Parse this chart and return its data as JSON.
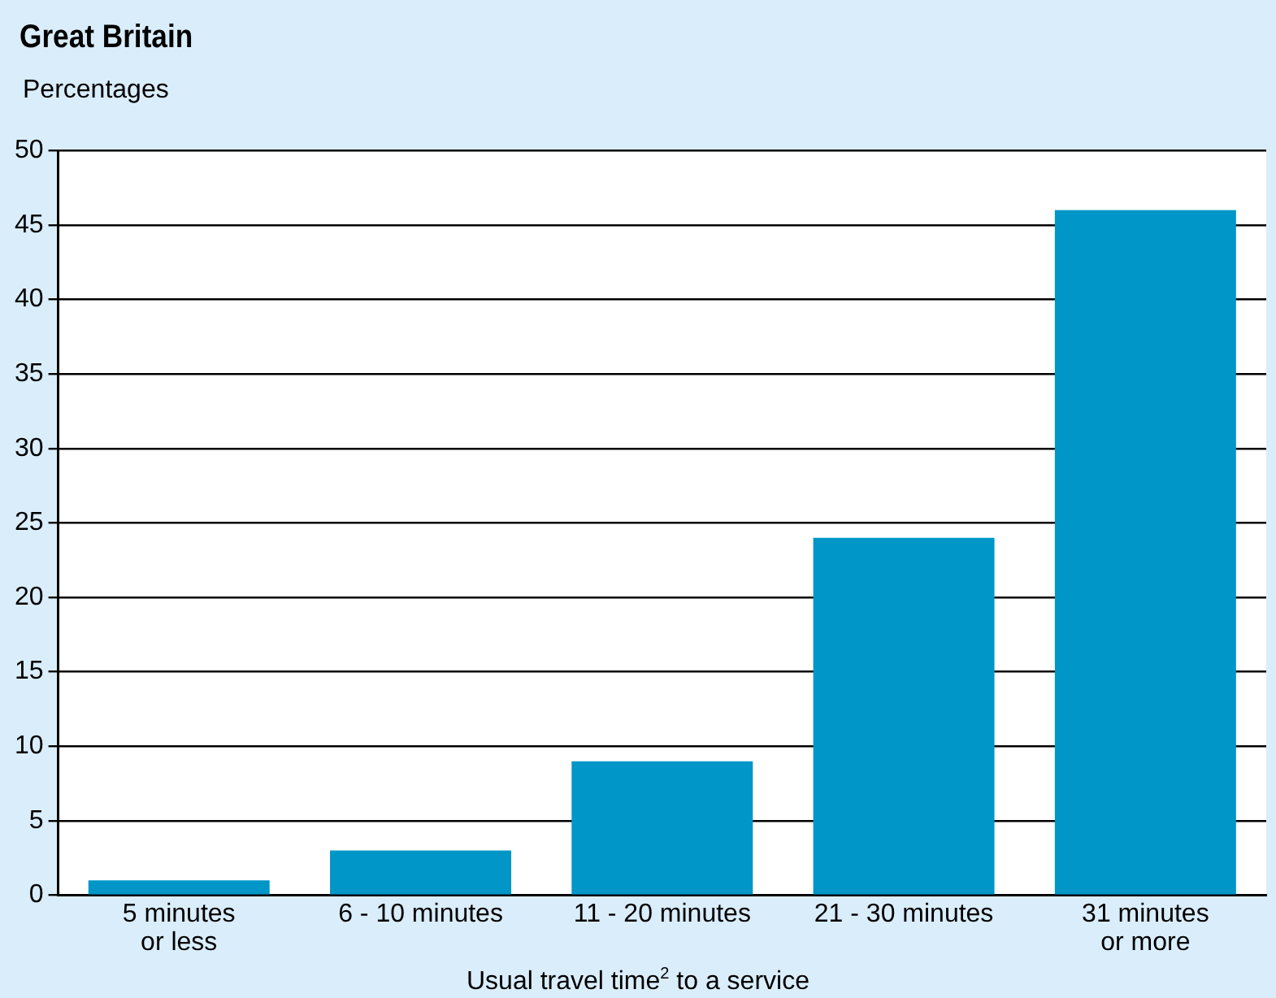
{
  "chart_data": {
    "type": "bar",
    "title": "Great Britain",
    "ylabel": "Percentages",
    "xlabel": "Usual travel time$^{2}$ to a service",
    "categories": [
      "5 minutes\nor less",
      "6 - 10 minutes",
      "11 - 20 minutes",
      "21 - 30 minutes",
      "31 minutes\nor more"
    ],
    "values": [
      1,
      3,
      9,
      24,
      46
    ],
    "color": "#0096c8",
    "ylim": [
      0,
      50
    ],
    "yticks": [
      0,
      5,
      10,
      15,
      20,
      25,
      30,
      35,
      40,
      45,
      50
    ],
    "grid": "y",
    "legend": false
  }
}
